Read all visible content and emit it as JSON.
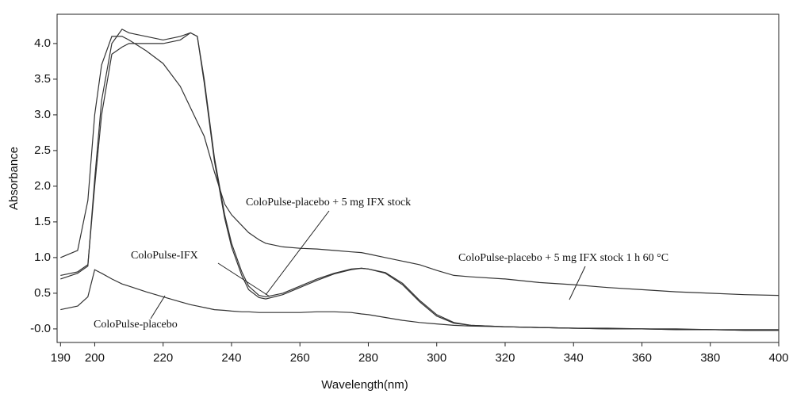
{
  "chart_data": {
    "type": "line",
    "x_label": "Wavelength(nm)",
    "y_label": "Absorbance",
    "x": [
      190,
      195,
      198,
      200,
      202,
      205,
      208,
      210,
      215,
      220,
      225,
      228,
      230,
      232,
      235,
      238,
      240,
      243,
      245,
      248,
      250,
      255,
      260,
      265,
      270,
      275,
      278,
      280,
      285,
      290,
      295,
      300,
      305,
      310,
      320,
      330,
      340,
      350,
      360,
      370,
      380,
      390,
      400
    ],
    "series": [
      {
        "name": "ColoPulse-placebo + 5 mg IFX stock 1 h 60 °C",
        "color": "#333333",
        "values": [
          1.0,
          1.1,
          1.8,
          3.0,
          3.7,
          4.1,
          4.1,
          4.05,
          3.9,
          3.72,
          3.4,
          3.1,
          2.9,
          2.7,
          2.2,
          1.75,
          1.6,
          1.45,
          1.35,
          1.25,
          1.2,
          1.15,
          1.13,
          1.12,
          1.1,
          1.08,
          1.07,
          1.05,
          1.0,
          0.95,
          0.9,
          0.82,
          0.75,
          0.73,
          0.7,
          0.65,
          0.62,
          0.58,
          0.55,
          0.52,
          0.5,
          0.48,
          0.47
        ]
      },
      {
        "name": "ColoPulse-placebo + 5 mg IFX stock",
        "color": "#333333",
        "values": [
          0.75,
          0.8,
          0.9,
          2.0,
          3.0,
          3.85,
          3.95,
          4.0,
          4.0,
          4.0,
          4.05,
          4.15,
          4.1,
          3.5,
          2.4,
          1.6,
          1.2,
          0.8,
          0.6,
          0.47,
          0.45,
          0.5,
          0.6,
          0.7,
          0.78,
          0.84,
          0.85,
          0.84,
          0.78,
          0.62,
          0.38,
          0.18,
          0.08,
          0.05,
          0.03,
          0.02,
          0.01,
          0.0,
          0.0,
          -0.01,
          -0.01,
          -0.02,
          -0.02
        ]
      },
      {
        "name": "ColoPulse-IFX",
        "color": "#333333",
        "values": [
          0.7,
          0.78,
          0.88,
          2.1,
          3.2,
          4.0,
          4.2,
          4.15,
          4.1,
          4.05,
          4.1,
          4.15,
          4.1,
          3.45,
          2.35,
          1.55,
          1.15,
          0.75,
          0.55,
          0.44,
          0.42,
          0.48,
          0.58,
          0.68,
          0.77,
          0.83,
          0.85,
          0.84,
          0.79,
          0.64,
          0.4,
          0.2,
          0.09,
          0.05,
          0.03,
          0.02,
          0.01,
          0.0,
          0.0,
          -0.01,
          -0.01,
          -0.02,
          -0.02
        ]
      },
      {
        "name": "ColoPulse-placebo",
        "color": "#333333",
        "values": [
          0.27,
          0.32,
          0.45,
          0.83,
          0.78,
          0.7,
          0.63,
          0.6,
          0.52,
          0.45,
          0.38,
          0.34,
          0.32,
          0.3,
          0.27,
          0.26,
          0.25,
          0.24,
          0.24,
          0.23,
          0.23,
          0.23,
          0.23,
          0.24,
          0.24,
          0.23,
          0.21,
          0.2,
          0.16,
          0.12,
          0.09,
          0.07,
          0.05,
          0.04,
          0.03,
          0.02,
          0.01,
          0.01,
          0.0,
          0.0,
          -0.01,
          -0.01,
          -0.01
        ]
      }
    ],
    "xlim": [
      189,
      400
    ],
    "ylim": [
      -0.19,
      4.41
    ],
    "xticks": [
      190,
      200,
      220,
      240,
      260,
      280,
      300,
      320,
      340,
      360,
      380,
      400
    ],
    "yticks": [
      {
        "value": 0,
        "label": "-0.0"
      },
      0.5,
      {
        "value": 1,
        "label": "1.0"
      },
      1.5,
      {
        "value": 2,
        "label": "2.0"
      },
      2.5,
      {
        "value": 3,
        "label": "3.0"
      },
      3.5,
      {
        "value": 4,
        "label": "4.0"
      }
    ]
  }
}
